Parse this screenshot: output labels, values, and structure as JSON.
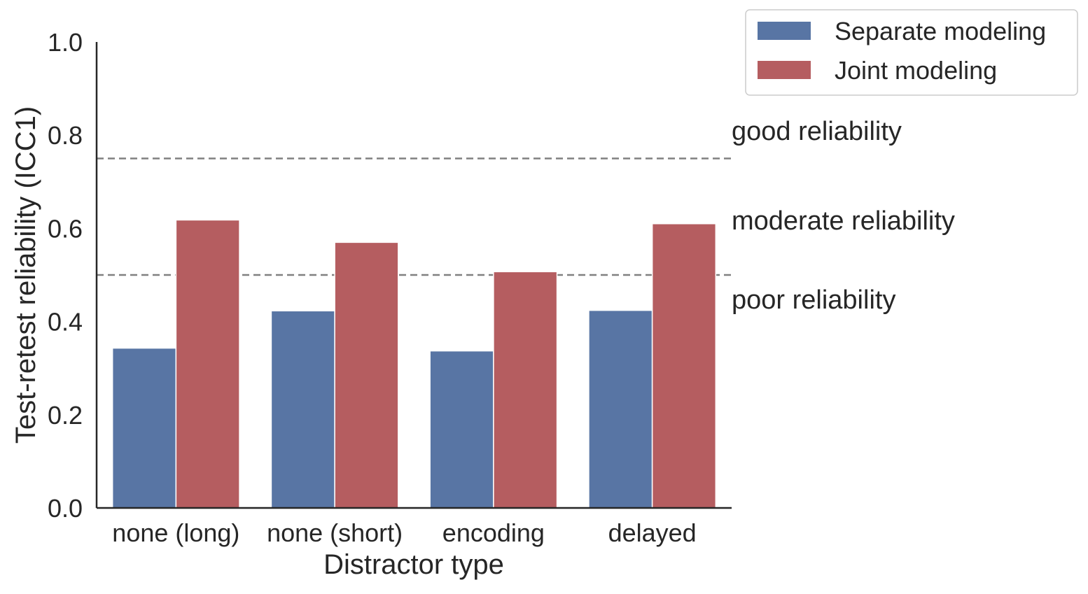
{
  "chart_data": {
    "type": "bar",
    "categories": [
      "none (long)",
      "none (short)",
      "encoding",
      "delayed"
    ],
    "series": [
      {
        "name": "Separate modeling",
        "color": "#5875a4",
        "values": [
          0.343,
          0.423,
          0.337,
          0.424
        ]
      },
      {
        "name": "Joint modeling",
        "color": "#b55d60",
        "values": [
          0.618,
          0.57,
          0.507,
          0.61
        ]
      }
    ],
    "xlabel": "Distractor type",
    "ylabel": "Test-retest reliability (ICC1)",
    "ylim": [
      0.0,
      1.0
    ],
    "yticks": [
      "0.0",
      "0.2",
      "0.4",
      "0.6",
      "0.8",
      "1.0"
    ],
    "grid": false,
    "legend": "outside-top-right",
    "reference_lines": [
      {
        "y": 0.75,
        "style": "dashed",
        "color": "#808080"
      },
      {
        "y": 0.5,
        "style": "dashed",
        "color": "#808080"
      }
    ],
    "annotations": [
      "good reliability",
      "moderate reliability",
      "poor reliability"
    ]
  }
}
